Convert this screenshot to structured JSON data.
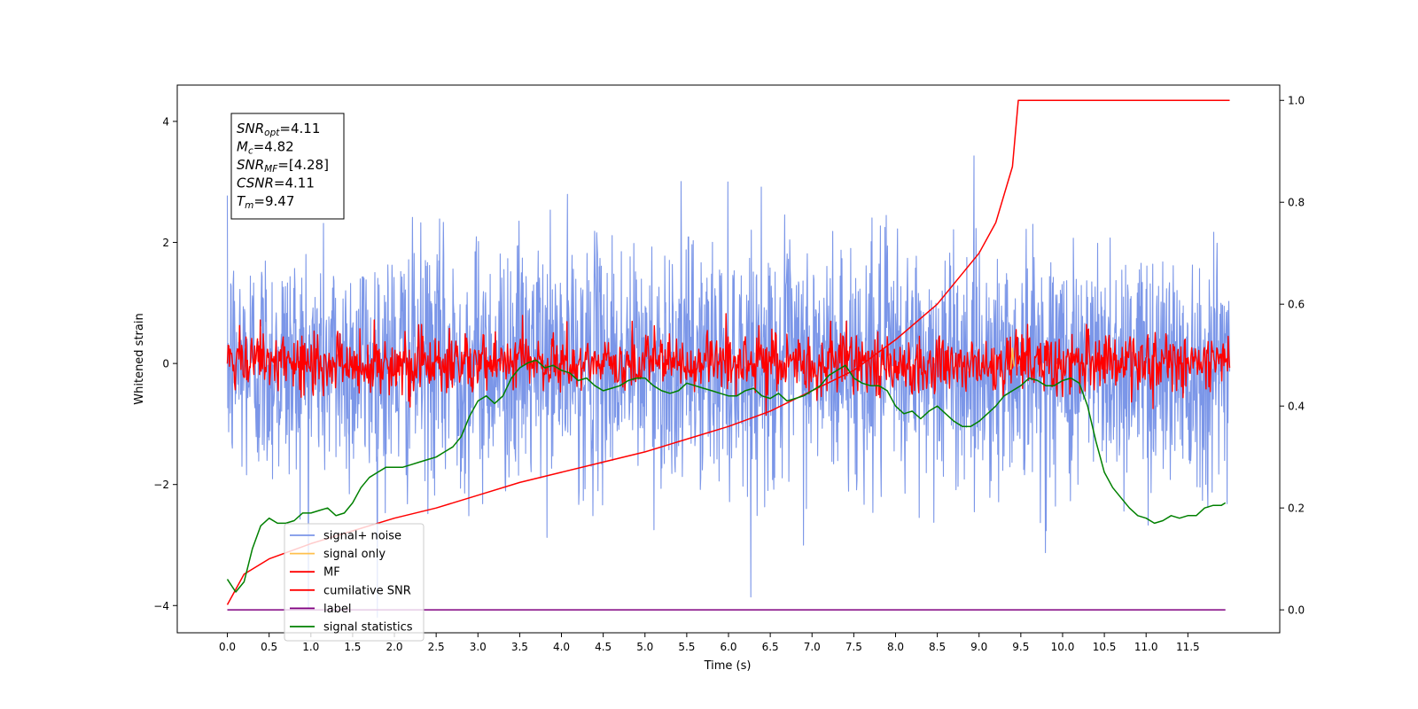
{
  "chart_data": {
    "type": "line",
    "xlabel": "Time (s)",
    "ylabel": "Whitened strain",
    "xlim": [
      -0.6,
      12.6
    ],
    "ylim": [
      -4.45,
      4.6
    ],
    "y2lim": [
      -0.045,
      1.03
    ],
    "xticks": [
      0.0,
      0.5,
      1.0,
      1.5,
      2.0,
      2.5,
      3.0,
      3.5,
      4.0,
      4.5,
      5.0,
      5.5,
      6.0,
      6.5,
      7.0,
      7.5,
      8.0,
      8.5,
      9.0,
      9.5,
      10.0,
      10.5,
      11.0,
      11.5
    ],
    "xtick_labels": [
      "0.0",
      "0.5",
      "1.0",
      "1.5",
      "2.0",
      "2.5",
      "3.0",
      "3.5",
      "4.0",
      "4.5",
      "5.0",
      "5.5",
      "6.0",
      "6.5",
      "7.0",
      "7.5",
      "8.0",
      "8.5",
      "9.0",
      "9.5",
      "10.0",
      "10.5",
      "11.0",
      "11.5"
    ],
    "yticks": [
      -4,
      -2,
      0,
      2,
      4
    ],
    "ytick_labels": [
      "−4",
      "−2",
      "0",
      "2",
      "4"
    ],
    "y2ticks": [
      0.0,
      0.2,
      0.4,
      0.6,
      0.8,
      1.0
    ],
    "y2tick_labels": [
      "0.0",
      "0.2",
      "0.4",
      "0.6",
      "0.8",
      "1.0"
    ],
    "grid": false,
    "legend_position": "bottom-left",
    "info_box": [
      {
        "sym": "SNR",
        "sub": "opt",
        "val": "=4.11"
      },
      {
        "sym": "M",
        "sub": "c",
        "val": "=4.82"
      },
      {
        "sym": "SNR",
        "sub": "MF",
        "val": "=[4.28]"
      },
      {
        "sym": "CSNR",
        "sub": "",
        "val": "=4.11"
      },
      {
        "sym": "T",
        "sub": "m",
        "val": "=9.47"
      }
    ],
    "series": [
      {
        "name": "signal+ noise",
        "color": "#7b96e8",
        "axis": "left",
        "noise": {
          "x_range": [
            0,
            12
          ],
          "mean": 0.0,
          "std": 1.0
        }
      },
      {
        "name": "signal only",
        "color": "#ffc04d",
        "axis": "left",
        "points": [
          [
            9.38,
            -0.1
          ],
          [
            9.4,
            0.25
          ],
          [
            9.42,
            -0.05
          ]
        ]
      },
      {
        "name": "MF",
        "color": "#ff0000",
        "axis": "left",
        "noise": {
          "x_range": [
            0,
            12
          ],
          "mean": 0.0,
          "std": 0.25
        }
      },
      {
        "name": "cumilative SNR",
        "color": "#ff0000",
        "axis": "right",
        "points": [
          [
            0,
            0.01
          ],
          [
            0.2,
            0.07
          ],
          [
            0.5,
            0.1
          ],
          [
            1,
            0.13
          ],
          [
            1.5,
            0.155
          ],
          [
            2,
            0.18
          ],
          [
            2.5,
            0.2
          ],
          [
            3,
            0.225
          ],
          [
            3.5,
            0.25
          ],
          [
            4,
            0.27
          ],
          [
            4.5,
            0.29
          ],
          [
            5,
            0.31
          ],
          [
            5.5,
            0.335
          ],
          [
            6,
            0.36
          ],
          [
            6.5,
            0.39
          ],
          [
            7,
            0.43
          ],
          [
            7.5,
            0.47
          ],
          [
            8,
            0.53
          ],
          [
            8.5,
            0.6
          ],
          [
            9,
            0.7
          ],
          [
            9.2,
            0.76
          ],
          [
            9.4,
            0.87
          ],
          [
            9.47,
            1.0
          ],
          [
            12,
            1.0
          ]
        ]
      },
      {
        "name": "label",
        "color": "#800080",
        "axis": "right",
        "points": [
          [
            0,
            0.0
          ],
          [
            11.95,
            0.0
          ]
        ]
      },
      {
        "name": "signal statistics",
        "color": "#008000",
        "axis": "right",
        "points": [
          [
            0,
            0.06
          ],
          [
            0.1,
            0.035
          ],
          [
            0.2,
            0.055
          ],
          [
            0.3,
            0.12
          ],
          [
            0.4,
            0.165
          ],
          [
            0.5,
            0.18
          ],
          [
            0.6,
            0.17
          ],
          [
            0.7,
            0.17
          ],
          [
            0.8,
            0.175
          ],
          [
            0.9,
            0.19
          ],
          [
            1.0,
            0.19
          ],
          [
            1.1,
            0.195
          ],
          [
            1.2,
            0.2
          ],
          [
            1.3,
            0.185
          ],
          [
            1.4,
            0.19
          ],
          [
            1.5,
            0.21
          ],
          [
            1.6,
            0.24
          ],
          [
            1.7,
            0.26
          ],
          [
            1.8,
            0.27
          ],
          [
            1.9,
            0.28
          ],
          [
            2.0,
            0.28
          ],
          [
            2.1,
            0.28
          ],
          [
            2.2,
            0.285
          ],
          [
            2.3,
            0.29
          ],
          [
            2.4,
            0.295
          ],
          [
            2.5,
            0.3
          ],
          [
            2.6,
            0.31
          ],
          [
            2.7,
            0.32
          ],
          [
            2.8,
            0.34
          ],
          [
            2.9,
            0.38
          ],
          [
            3.0,
            0.41
          ],
          [
            3.1,
            0.42
          ],
          [
            3.2,
            0.405
          ],
          [
            3.3,
            0.42
          ],
          [
            3.4,
            0.455
          ],
          [
            3.5,
            0.475
          ],
          [
            3.6,
            0.485
          ],
          [
            3.7,
            0.49
          ],
          [
            3.8,
            0.475
          ],
          [
            3.9,
            0.48
          ],
          [
            4.0,
            0.47
          ],
          [
            4.1,
            0.465
          ],
          [
            4.2,
            0.45
          ],
          [
            4.3,
            0.455
          ],
          [
            4.4,
            0.44
          ],
          [
            4.5,
            0.43
          ],
          [
            4.6,
            0.435
          ],
          [
            4.7,
            0.44
          ],
          [
            4.8,
            0.45
          ],
          [
            4.9,
            0.455
          ],
          [
            5.0,
            0.455
          ],
          [
            5.1,
            0.44
          ],
          [
            5.2,
            0.43
          ],
          [
            5.3,
            0.425
          ],
          [
            5.4,
            0.43
          ],
          [
            5.5,
            0.445
          ],
          [
            5.6,
            0.44
          ],
          [
            5.7,
            0.435
          ],
          [
            5.8,
            0.43
          ],
          [
            5.9,
            0.425
          ],
          [
            6.0,
            0.42
          ],
          [
            6.1,
            0.42
          ],
          [
            6.2,
            0.43
          ],
          [
            6.3,
            0.435
          ],
          [
            6.4,
            0.42
          ],
          [
            6.5,
            0.415
          ],
          [
            6.6,
            0.425
          ],
          [
            6.7,
            0.41
          ],
          [
            6.8,
            0.415
          ],
          [
            6.9,
            0.42
          ],
          [
            7.0,
            0.43
          ],
          [
            7.1,
            0.44
          ],
          [
            7.2,
            0.46
          ],
          [
            7.3,
            0.47
          ],
          [
            7.4,
            0.48
          ],
          [
            7.5,
            0.455
          ],
          [
            7.6,
            0.445
          ],
          [
            7.7,
            0.44
          ],
          [
            7.8,
            0.44
          ],
          [
            7.9,
            0.43
          ],
          [
            8.0,
            0.4
          ],
          [
            8.1,
            0.385
          ],
          [
            8.2,
            0.39
          ],
          [
            8.3,
            0.375
          ],
          [
            8.4,
            0.39
          ],
          [
            8.5,
            0.4
          ],
          [
            8.6,
            0.385
          ],
          [
            8.7,
            0.37
          ],
          [
            8.8,
            0.36
          ],
          [
            8.9,
            0.36
          ],
          [
            9.0,
            0.37
          ],
          [
            9.1,
            0.385
          ],
          [
            9.2,
            0.4
          ],
          [
            9.3,
            0.42
          ],
          [
            9.4,
            0.43
          ],
          [
            9.5,
            0.44
          ],
          [
            9.6,
            0.455
          ],
          [
            9.7,
            0.45
          ],
          [
            9.8,
            0.44
          ],
          [
            9.9,
            0.44
          ],
          [
            10.0,
            0.45
          ],
          [
            10.1,
            0.455
          ],
          [
            10.2,
            0.445
          ],
          [
            10.3,
            0.4
          ],
          [
            10.4,
            0.33
          ],
          [
            10.5,
            0.27
          ],
          [
            10.6,
            0.24
          ],
          [
            10.7,
            0.22
          ],
          [
            10.8,
            0.2
          ],
          [
            10.9,
            0.185
          ],
          [
            11.0,
            0.18
          ],
          [
            11.1,
            0.17
          ],
          [
            11.2,
            0.175
          ],
          [
            11.3,
            0.185
          ],
          [
            11.4,
            0.18
          ],
          [
            11.5,
            0.185
          ],
          [
            11.6,
            0.185
          ],
          [
            11.7,
            0.2
          ],
          [
            11.8,
            0.205
          ],
          [
            11.9,
            0.205
          ],
          [
            11.95,
            0.21
          ]
        ]
      }
    ]
  }
}
